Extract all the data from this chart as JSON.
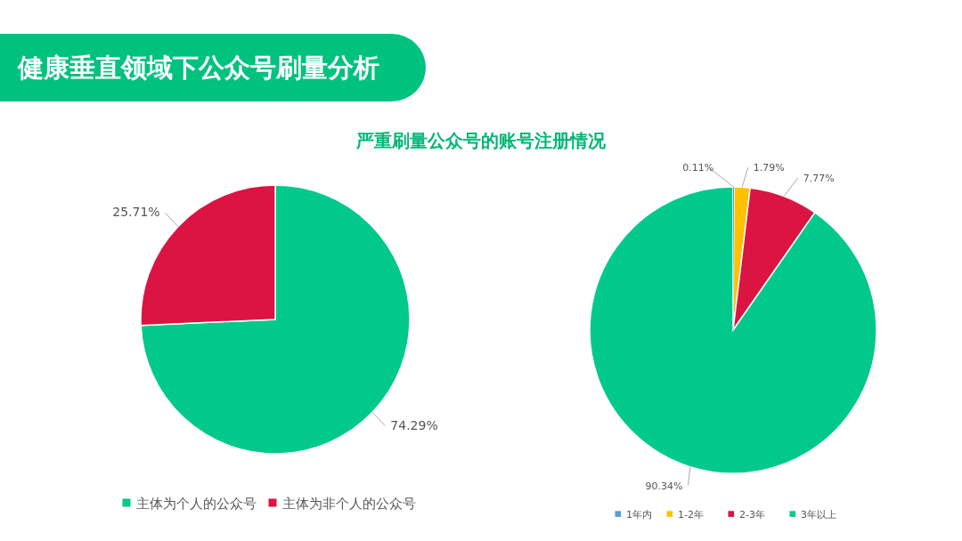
{
  "chart_data": [
    {
      "type": "pie",
      "title": "健康垂直领域下公众号刷量分析",
      "subtitle": "严重刷量公众号的账号注册情况",
      "categories": [
        "主体为个人的公众号",
        "主体为非个人的公众号"
      ],
      "values": [
        74.29,
        25.71
      ],
      "colors": [
        "#00c98b",
        "#dc1442"
      ],
      "value_labels": [
        "74.29%",
        "25.71%"
      ],
      "legend": "bottom"
    },
    {
      "type": "pie",
      "categories": [
        "1年内",
        "1-2年",
        "2-3年",
        "3年以上"
      ],
      "values": [
        0.11,
        1.79,
        7.77,
        90.34
      ],
      "colors": [
        "#5b9bd5",
        "#ffc000",
        "#dc1442",
        "#00c98b"
      ],
      "value_labels": [
        "0.11%",
        "1.79%",
        "7.77%",
        "90.34%"
      ],
      "legend": "bottom"
    }
  ]
}
